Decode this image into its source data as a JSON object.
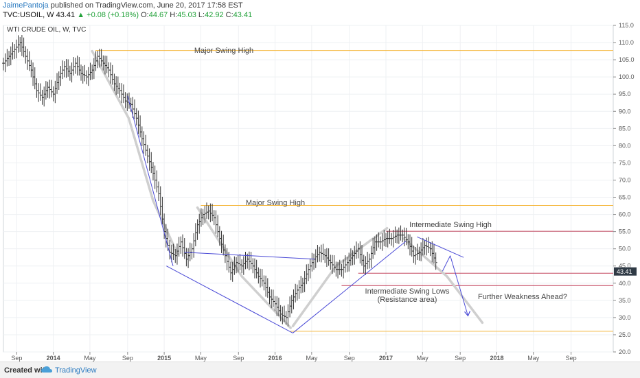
{
  "header": {
    "author": "JaimePantoja",
    "published": "published on TradingView.com, June 20, 2017 17:58 EST",
    "symbol": "TVC:USOIL, W",
    "last": "43.41",
    "change": "+0.08 (+0.18%)",
    "o_label": "O:",
    "o_value": "44.67",
    "h_label": "H:",
    "h_value": "45.03",
    "l_label": "L:",
    "l_value": "42.92",
    "c_label": "C:",
    "c_value": "43.41",
    "up_arrow_icon": "triangle-up-icon"
  },
  "footer": {
    "created_with": "Created with",
    "brand": "TradingView",
    "logo_icon": "tradingview-cloud-icon"
  },
  "chart_data": {
    "type": "line",
    "title": "WTI CRUDE OIL, W, TVC",
    "ylim": [
      20,
      115
    ],
    "yticks": [
      20,
      25,
      30,
      35,
      40,
      45,
      50,
      55,
      60,
      65,
      70,
      75,
      80,
      85,
      90,
      95,
      100,
      105,
      110,
      115
    ],
    "xlim": [
      2013.55,
      2019.05
    ],
    "xticks": [
      {
        "x": 2013.67,
        "label": "Sep"
      },
      {
        "x": 2014.0,
        "label": "2014"
      },
      {
        "x": 2014.33,
        "label": "May"
      },
      {
        "x": 2014.67,
        "label": "Sep"
      },
      {
        "x": 2015.0,
        "label": "2015"
      },
      {
        "x": 2015.33,
        "label": "May"
      },
      {
        "x": 2015.67,
        "label": "Sep"
      },
      {
        "x": 2016.0,
        "label": "2016"
      },
      {
        "x": 2016.33,
        "label": "May"
      },
      {
        "x": 2016.67,
        "label": "Sep"
      },
      {
        "x": 2017.0,
        "label": "2017"
      },
      {
        "x": 2017.33,
        "label": "May"
      },
      {
        "x": 2017.67,
        "label": "Sep"
      },
      {
        "x": 2018.0,
        "label": "2018"
      },
      {
        "x": 2018.33,
        "label": "May"
      },
      {
        "x": 2018.67,
        "label": "Sep"
      }
    ],
    "grid": true,
    "last_price": {
      "value": 43.41,
      "label": "43.41"
    },
    "series": [
      {
        "x": [
          2013.55,
          2013.6,
          2013.65,
          2013.7,
          2013.75,
          2013.8,
          2013.85,
          2013.9,
          2013.95,
          2014.0,
          2014.05,
          2014.1,
          2014.15,
          2014.2,
          2014.25,
          2014.3,
          2014.35,
          2014.4,
          2014.45,
          2014.5,
          2014.55,
          2014.6,
          2014.65,
          2014.7,
          2014.75,
          2014.8,
          2014.85,
          2014.9,
          2014.95,
          2015.0,
          2015.05,
          2015.1,
          2015.15,
          2015.2,
          2015.25,
          2015.3,
          2015.35,
          2015.4,
          2015.45,
          2015.5,
          2015.55,
          2015.6,
          2015.65,
          2015.7,
          2015.75,
          2015.8,
          2015.85,
          2015.9,
          2015.95,
          2016.0,
          2016.05,
          2016.1,
          2016.15,
          2016.2,
          2016.25,
          2016.3,
          2016.35,
          2016.4,
          2016.45,
          2016.5,
          2016.55,
          2016.6,
          2016.65,
          2016.7,
          2016.75,
          2016.8,
          2016.85,
          2016.9,
          2016.95,
          2017.0,
          2017.05,
          2017.1,
          2017.15,
          2017.2,
          2017.25,
          2017.3,
          2017.35,
          2017.4,
          2017.45
        ],
        "values": [
          104,
          106,
          108,
          110,
          106,
          102,
          96,
          94,
          97,
          95,
          100,
          103,
          101,
          104,
          101,
          100,
          102,
          106,
          104,
          102,
          98,
          96,
          93,
          92,
          88,
          82,
          77,
          72,
          66,
          55,
          49,
          48,
          52,
          47,
          50,
          57,
          60,
          61,
          59,
          53,
          48,
          43,
          46,
          45,
          47,
          45,
          42,
          40,
          36,
          34,
          31,
          30,
          35,
          38,
          40,
          44,
          47,
          49,
          48,
          46,
          44,
          44,
          46,
          48,
          50,
          45,
          47,
          52,
          52,
          53,
          53,
          54,
          54,
          52,
          48,
          49,
          51,
          50,
          46
        ],
        "color": "#333333"
      }
    ],
    "annotations": {
      "levels": [
        {
          "y": 107.7,
          "label": "Major Swing High",
          "color": "#f5b942"
        },
        {
          "y": 62.6,
          "label": "Major Swing High",
          "color": "#f5b942"
        },
        {
          "y": 55.1,
          "label": "Intermediate Swing High",
          "color": "#c2405a"
        },
        {
          "y": 42.9,
          "label": "",
          "color": "#c2405a"
        },
        {
          "y": 39.3,
          "label": "",
          "color": "#c2405a"
        },
        {
          "y": 26.0,
          "label": "",
          "color": "#f5b942"
        }
      ],
      "text": [
        "Intermediate Swing Lows",
        "(Resistance area)",
        "Further Weakness Ahead?"
      ],
      "trend_lines": [
        {
          "x1": 2014.67,
          "y1": 94.5,
          "x2": 2015.08,
          "y2": 45.0,
          "color": "#4a4ad6"
        },
        {
          "x1": 2015.02,
          "y1": 45.0,
          "x2": 2016.16,
          "y2": 25.5,
          "color": "#4a4ad6"
        },
        {
          "x1": 2015.18,
          "y1": 49.0,
          "x2": 2016.36,
          "y2": 47.0,
          "color": "#4a4ad6"
        },
        {
          "x1": 2016.16,
          "y1": 25.5,
          "x2": 2017.18,
          "y2": 52.2,
          "color": "#4a4ad6"
        },
        {
          "x1": 2017.28,
          "y1": 53.5,
          "x2": 2017.7,
          "y2": 47.5,
          "color": "#4a4ad6"
        },
        {
          "x1": 2017.51,
          "y1": 43.5,
          "x2": 2017.58,
          "y2": 48.0,
          "color": "#4a4ad6"
        },
        {
          "x1": 2017.58,
          "y1": 48.0,
          "x2": 2017.74,
          "y2": 30.5,
          "color": "#4a4ad6"
        }
      ],
      "grey_paths": [
        [
          [
            2014.35,
            107.5
          ],
          [
            2014.68,
            88.0
          ],
          [
            2014.9,
            64.0
          ],
          [
            2015.12,
            48.5
          ]
        ],
        [
          [
            2015.3,
            62.0
          ],
          [
            2015.7,
            42.0
          ],
          [
            2016.14,
            27.0
          ]
        ],
        [
          [
            2016.16,
            27.5
          ],
          [
            2016.55,
            45.0
          ],
          [
            2017.01,
            56.0
          ]
        ],
        [
          [
            2017.16,
            53.0
          ],
          [
            2017.55,
            42.0
          ],
          [
            2017.87,
            28.5
          ]
        ]
      ]
    }
  }
}
